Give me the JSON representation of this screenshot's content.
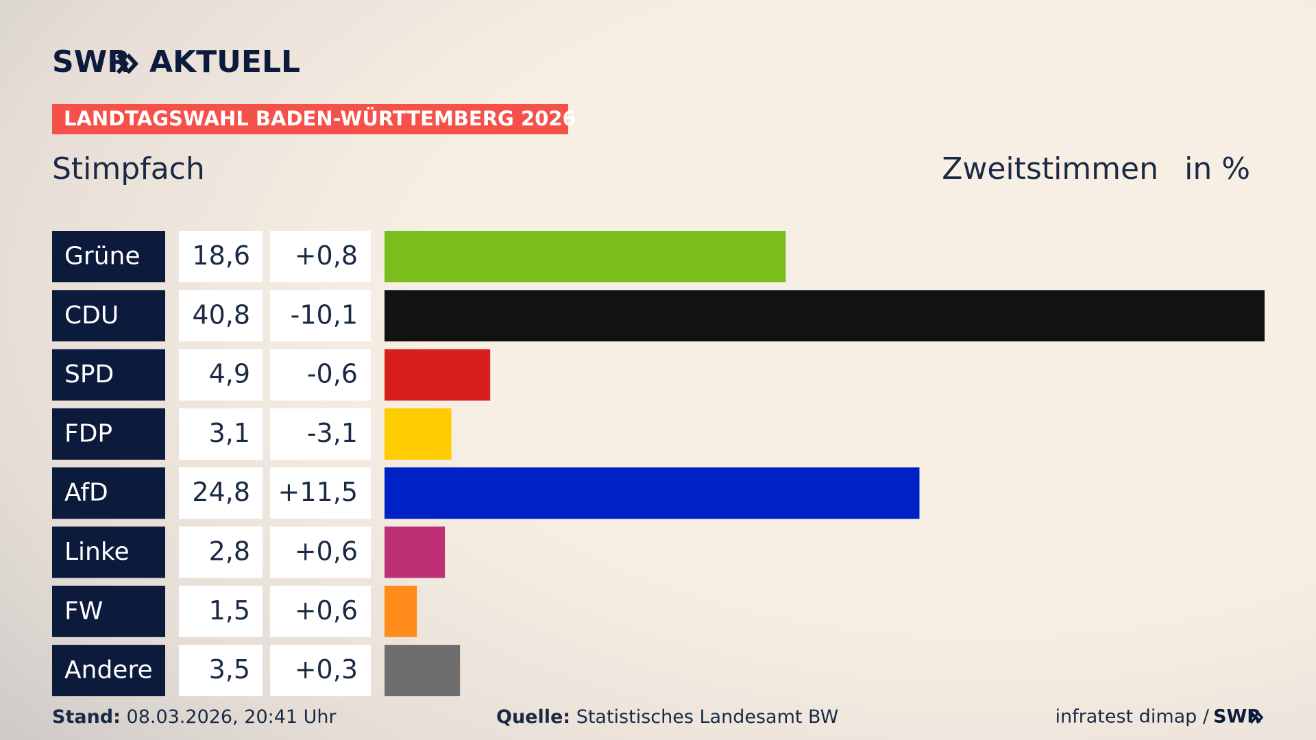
{
  "brand": "SWR",
  "brand_section": "AKTUELL",
  "banner": "LANDTAGSWAHL BADEN-WÜRTTEMBERG 2026",
  "chart_data": {
    "type": "bar",
    "title": "Stimpfach",
    "subtitle": "Zweitstimmen",
    "unit": "in %",
    "categories": [
      "Grüne",
      "CDU",
      "SPD",
      "FDP",
      "AfD",
      "Linke",
      "FW",
      "Andere"
    ],
    "values": [
      18.6,
      40.8,
      4.9,
      3.1,
      24.8,
      2.8,
      1.5,
      3.5
    ],
    "value_labels": [
      "18,6",
      "40,8",
      "4,9",
      "3,1",
      "24,8",
      "2,8",
      "1,5",
      "3,5"
    ],
    "changes": [
      0.8,
      -10.1,
      -0.6,
      -3.1,
      11.5,
      0.6,
      0.6,
      0.3
    ],
    "change_labels": [
      "+0,8",
      "-10,1",
      "-0,6",
      "-3,1",
      "+11,5",
      "+0,6",
      "+0,6",
      "+0,3"
    ],
    "colors": [
      "#7abe1e",
      "#121212",
      "#d7201e",
      "#ffcc00",
      "#0021c6",
      "#be3075",
      "#ff8c1a",
      "#6e6e6e"
    ]
  },
  "footer": {
    "stand_label": "Stand:",
    "stand": "08.03.2026, 20:41 Uhr",
    "source_label": "Quelle:",
    "source": "Statistisches Landesamt BW",
    "credit": "infratest dimap /",
    "credit_brand": "SWR"
  }
}
